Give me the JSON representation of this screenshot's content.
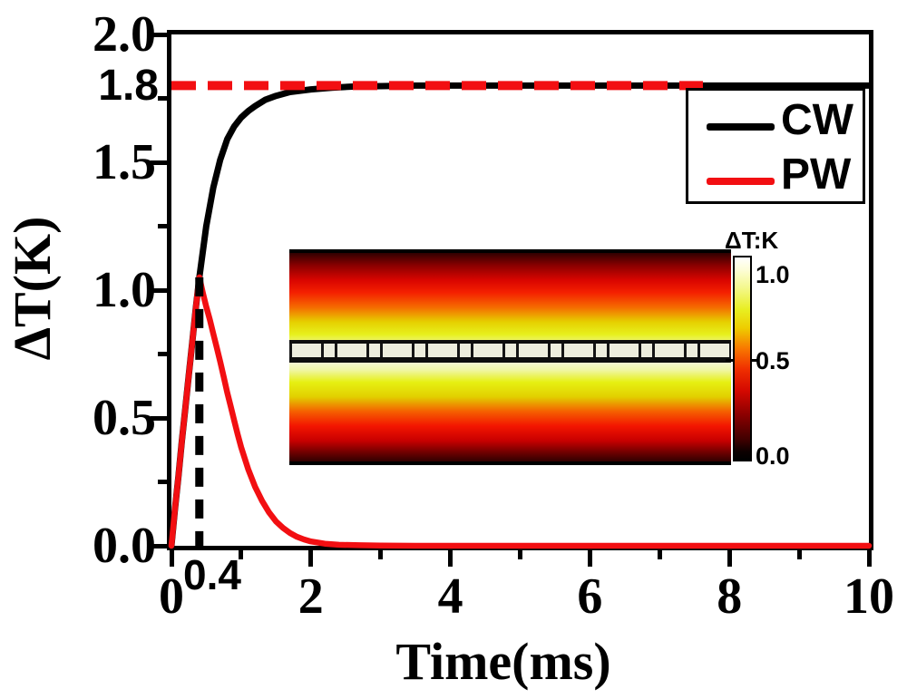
{
  "figure": {
    "background": "#ffffff"
  },
  "chart_data": {
    "type": "line",
    "title": "",
    "x_axis": {
      "label": "Time(ms)",
      "range": [
        0,
        10
      ],
      "major_ticks": [
        0,
        2,
        4,
        6,
        8,
        10
      ],
      "tick_labels": [
        "0",
        "2",
        "4",
        "6",
        "8",
        "10"
      ],
      "minor_ticks": [
        1,
        3,
        5,
        7,
        9
      ]
    },
    "y_axis": {
      "label": "ΔT(K)",
      "range": [
        0,
        2
      ],
      "major_ticks": [
        0,
        0.5,
        1,
        1.5,
        2
      ],
      "tick_labels": [
        "0.0",
        "0.5",
        "1.0",
        "1.5",
        "2.0"
      ],
      "minor_ticks": [
        0.25,
        0.75,
        1.25,
        1.75
      ]
    },
    "series": [
      {
        "name": "CW",
        "color": "#000000",
        "line_width": 7,
        "x": [
          0,
          0.05,
          0.1,
          0.15,
          0.2,
          0.25,
          0.3,
          0.35,
          0.4,
          0.5,
          0.6,
          0.7,
          0.8,
          0.9,
          1.0,
          1.1,
          1.2,
          1.35,
          1.5,
          1.7,
          2.0,
          2.3,
          2.6,
          3.0,
          3.5,
          4,
          5,
          6,
          7,
          8,
          9,
          10
        ],
        "y": [
          0,
          0.14,
          0.27,
          0.41,
          0.54,
          0.67,
          0.8,
          0.93,
          1.05,
          1.25,
          1.4,
          1.51,
          1.59,
          1.64,
          1.675,
          1.7,
          1.72,
          1.745,
          1.76,
          1.775,
          1.785,
          1.792,
          1.796,
          1.798,
          1.8,
          1.8,
          1.8,
          1.8,
          1.8,
          1.8,
          1.8,
          1.8
        ]
      },
      {
        "name": "PW",
        "color": "#f20f12",
        "line_width": 6.5,
        "x": [
          0,
          0.05,
          0.1,
          0.15,
          0.2,
          0.25,
          0.3,
          0.35,
          0.4,
          0.45,
          0.5,
          0.55,
          0.6,
          0.65,
          0.7,
          0.75,
          0.8,
          0.85,
          0.9,
          0.95,
          1.0,
          1.1,
          1.2,
          1.3,
          1.4,
          1.5,
          1.6,
          1.7,
          1.8,
          1.9,
          2.0,
          2.2,
          2.4,
          2.7,
          3.0,
          3.5,
          4,
          5,
          6,
          7,
          8,
          9,
          10
        ],
        "y": [
          0,
          0.14,
          0.27,
          0.41,
          0.54,
          0.67,
          0.8,
          0.93,
          1.05,
          0.99,
          0.935,
          0.885,
          0.83,
          0.775,
          0.72,
          0.66,
          0.6,
          0.545,
          0.49,
          0.435,
          0.385,
          0.3,
          0.23,
          0.175,
          0.13,
          0.095,
          0.07,
          0.05,
          0.035,
          0.025,
          0.017,
          0.008,
          0.004,
          0.002,
          0.001,
          0,
          0,
          0,
          0,
          0,
          0,
          0,
          0
        ]
      }
    ],
    "annotations": {
      "hline": {
        "value": 1.8,
        "label": "1.8",
        "x_start": 0,
        "x_end": 7.62,
        "color": "#f20f12",
        "style": "dashed"
      },
      "vline": {
        "value": 0.4,
        "label": "0.4",
        "y_start": 0,
        "y_end": 1.05,
        "color": "#000000",
        "style": "dashed"
      }
    },
    "legend": {
      "position": "top-right",
      "items": [
        {
          "label": "CW",
          "color": "#000000"
        },
        {
          "label": "PW",
          "color": "#f20f12"
        }
      ]
    },
    "inset": {
      "description": "cross-section temperature field heatmap with segmented waveguide strip at center",
      "colorbar": {
        "title": "ΔT:K",
        "tick_labels": [
          "1.0",
          "0.5",
          "0.0"
        ],
        "tick_values": [
          1.0,
          0.5,
          0.0
        ]
      }
    }
  }
}
